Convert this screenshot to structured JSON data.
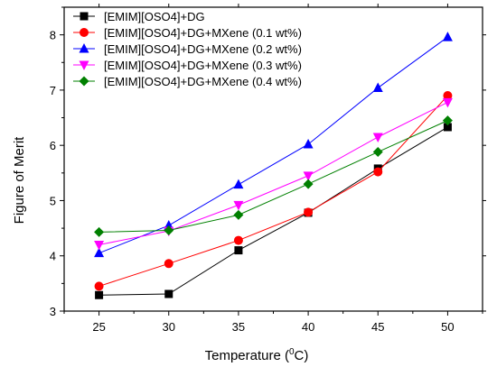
{
  "chart_data": {
    "type": "line",
    "xlabel": "Temperature (",
    "xlabel_sup": "0",
    "xlabel_end": "C)",
    "ylabel": "Figure of Merit",
    "x": [
      25,
      30,
      35,
      40,
      45,
      50
    ],
    "xlim": [
      22.5,
      52.5
    ],
    "ylim": [
      3,
      8.5
    ],
    "xticks": [
      "25",
      "30",
      "35",
      "40",
      "45",
      "50"
    ],
    "yticks": [
      "3",
      "4",
      "5",
      "6",
      "7",
      "8"
    ],
    "legend_position": "top-left",
    "series": [
      {
        "name": "[EMIM][OSO4]+DG",
        "color": "#000000",
        "marker": "square",
        "values": [
          3.29,
          3.31,
          4.1,
          4.78,
          5.58,
          6.33
        ]
      },
      {
        "name": "[EMIM][OSO4]+DG+MXene (0.1 wt%)",
        "color": "#ff0000",
        "marker": "circle",
        "values": [
          3.45,
          3.86,
          4.28,
          4.79,
          5.52,
          6.9
        ]
      },
      {
        "name": "[EMIM][OSO4]+DG+MXene (0.2 wt%)",
        "color": "#0000ff",
        "marker": "triangle-up",
        "values": [
          4.05,
          4.55,
          5.29,
          6.02,
          7.04,
          7.96
        ]
      },
      {
        "name": "[EMIM][OSO4]+DG+MXene (0.3 wt%)",
        "color": "#ff00ff",
        "marker": "triangle-down",
        "values": [
          4.2,
          4.45,
          4.92,
          5.45,
          6.15,
          6.78
        ]
      },
      {
        "name": "[EMIM][OSO4]+DG+MXene (0.4 wt%)",
        "color": "#008000",
        "marker": "diamond",
        "values": [
          4.43,
          4.46,
          4.74,
          5.3,
          5.88,
          6.45
        ]
      }
    ]
  }
}
